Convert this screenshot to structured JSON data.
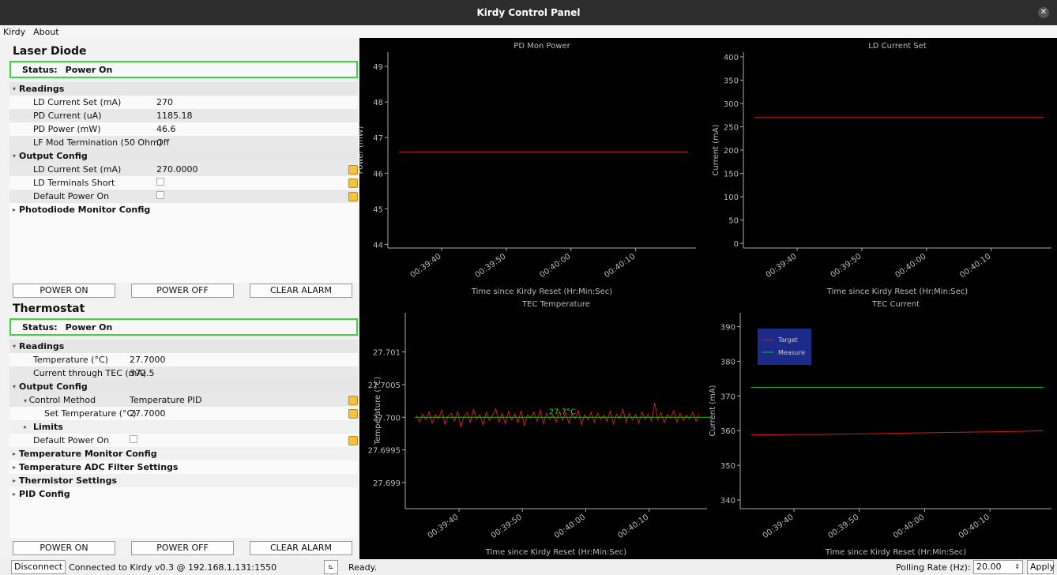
{
  "window": {
    "title": "Kirdy Control Panel"
  },
  "menu": [
    "Kirdy",
    "About"
  ],
  "laser": {
    "title": "Laser Diode",
    "status_label": "Status:",
    "status_value": "Power On",
    "readings_header": "Readings",
    "readings": [
      {
        "name": "LD Current Set (mA)",
        "value": "270"
      },
      {
        "name": "PD Current (uA)",
        "value": "1185.18"
      },
      {
        "name": "PD Power (mW)",
        "value": "46.6"
      },
      {
        "name": "LF Mod Termination (50 Ohm)",
        "value": "Off"
      }
    ],
    "output_header": "Output Config",
    "output": [
      {
        "name": "LD Current Set (mA)",
        "value": "270.0000"
      },
      {
        "name": "LD Terminals Short",
        "value": ""
      },
      {
        "name": "Default Power On",
        "value": ""
      }
    ],
    "pd_header": "Photodiode Monitor Config",
    "buttons": [
      "POWER ON",
      "POWER OFF",
      "CLEAR ALARM"
    ]
  },
  "thermostat": {
    "title": "Thermostat",
    "status_label": "Status:",
    "status_value": "Power On",
    "readings_header": "Readings",
    "readings": [
      {
        "name": "Temperature (°C)",
        "value": "27.7000"
      },
      {
        "name": "Current through TEC (mA)",
        "value": "372.5"
      }
    ],
    "output_header": "Output Config",
    "control_method": {
      "name": "Control Method",
      "value": "Temperature PID"
    },
    "set_temp": {
      "name": "Set Temperature (°C)",
      "value": "27.7000"
    },
    "limits": "Limits",
    "default_power": "Default Power On",
    "groups": [
      "Temperature Monitor Config",
      "Temperature ADC Filter Settings",
      "Thermistor Settings",
      "PID Config"
    ],
    "buttons": [
      "POWER ON",
      "POWER OFF",
      "CLEAR ALARM"
    ]
  },
  "statusbar": {
    "disconnect": "Disconnect",
    "connection": "Connected to Kirdy v0.3 @ 192.168.1.131:1550",
    "ready": "Ready.",
    "polling_label": "Polling Rate (Hz):",
    "polling_value": "20.00",
    "apply": "Apply"
  },
  "chart_data": [
    {
      "type": "line",
      "title": "PD Mon Power",
      "ylabel": "Power (mW)",
      "xlabel": "Time since Kirdy Reset (Hr:Min:Sec)",
      "ylim": [
        43.9,
        49.4
      ],
      "yticks": [
        44,
        45,
        46,
        47,
        48,
        49
      ],
      "xticks": [
        "00:39:40",
        "00:39:50",
        "00:40:00",
        "00:40:10"
      ],
      "series": [
        {
          "values": [
            46.6,
            46.6
          ],
          "color": "#d41c1c"
        }
      ]
    },
    {
      "type": "line",
      "title": "LD Current Set",
      "ylabel": "Current (mA)",
      "xlabel": "Time since Kirdy Reset (Hr:Min:Sec)",
      "ylim": [
        -10,
        410
      ],
      "yticks": [
        0,
        50,
        100,
        150,
        200,
        250,
        300,
        350,
        400
      ],
      "xticks": [
        "00:39:40",
        "00:39:50",
        "00:40:00",
        "00:40:10"
      ],
      "series": [
        {
          "values": [
            270,
            270
          ],
          "color": "#d41c1c"
        }
      ]
    },
    {
      "type": "line",
      "title": "TEC Temperature",
      "ylabel": "Temperature (°C)",
      "xlabel": "Time since Kirdy Reset (Hr:Min:Sec)",
      "ylim": [
        27.6986,
        27.7016
      ],
      "yticks": [
        "27.699",
        "27.6995",
        "27.700",
        "27.7005",
        "27.701"
      ],
      "ytick_values": [
        27.699,
        27.6995,
        27.7,
        27.7005,
        27.701
      ],
      "xticks": [
        "00:39:40",
        "00:39:50",
        "00:40:00",
        "00:40:10"
      ],
      "annotation": "27.7°C",
      "target": 27.7,
      "series": [
        {
          "values": [
            27.70003,
            27.69993,
            27.70005,
            27.69996,
            27.70008,
            27.69991,
            27.70004,
            27.69998,
            27.70011,
            27.69989,
            27.70002,
            27.70006,
            27.69994,
            27.70009,
            27.69985,
            27.70001,
            27.70007,
            27.69992,
            27.70012,
            27.69997,
            27.70004,
            27.69988,
            27.70008,
            27.69995,
            27.70003,
            27.70013,
            27.69993,
            27.70006,
            27.6999,
            27.70009,
            27.69996,
            27.70005,
            27.69992,
            27.7001,
            27.69987,
            27.70004,
            27.69999,
            27.70008,
            27.69994,
            27.70011,
            27.6999,
            27.70006,
            27.69997,
            27.70003,
            27.69993,
            27.70009,
            27.69995,
            27.70007,
            27.69991,
            27.70005,
            27.69998,
            27.7001,
            27.69989,
            27.70004,
            27.69996,
            27.70008,
            27.69992,
            27.70006,
            27.69997,
            27.70003,
            27.69994,
            27.70009,
            27.6999,
            27.70005,
            27.69998,
            27.70012,
            27.69993,
            27.70006,
            27.69996,
            27.70004,
            27.69991,
            27.70008,
            27.69997,
            27.70005,
            27.69994,
            27.70022,
            27.69996,
            27.70007,
            27.69992,
            27.70004,
            27.69998,
            27.7001,
            27.69993,
            27.70006,
            27.69995,
            27.70003,
            27.69997,
            27.70008,
            27.69994,
            27.70005
          ],
          "color": "#d41c1c"
        },
        {
          "values": [
            27.7,
            27.7
          ],
          "color": "#1fbf1f"
        }
      ]
    },
    {
      "type": "line",
      "title": "TEC Current",
      "ylabel": "Current (mA)",
      "xlabel": "Time since Kirdy Reset (Hr:Min:Sec)",
      "ylim": [
        337.5,
        394
      ],
      "yticks": [
        340,
        350,
        360,
        370,
        380,
        390
      ],
      "xticks": [
        "00:39:40",
        "00:39:50",
        "00:40:00",
        "00:40:10"
      ],
      "legend": [
        {
          "name": "Target",
          "color": "#d41c1c"
        },
        {
          "name": "Measure",
          "color": "#1fbf1f"
        }
      ],
      "series": [
        {
          "name": "Target",
          "values": [
            358.8,
            358.8,
            358.9,
            358.9,
            359.0,
            359.1,
            359.2,
            359.3,
            359.4,
            359.5,
            359.6,
            359.7,
            359.8,
            360.0
          ],
          "color": "#d41c1c"
        },
        {
          "name": "Measure",
          "values": [
            372.5,
            372.5
          ],
          "color": "#1fbf1f"
        }
      ]
    }
  ]
}
